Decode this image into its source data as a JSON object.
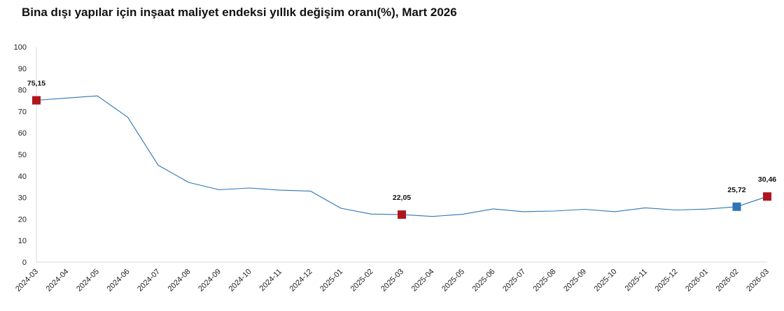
{
  "title": "Bina dışı yapılar için inşaat maliyet endeksi yıllık değişim oranı(%), Mart 2026",
  "chart_data": {
    "type": "line",
    "categories": [
      "2024-03",
      "2024-04",
      "2024-05",
      "2024-06",
      "2024-07",
      "2024-08",
      "2024-09",
      "2024-10",
      "2024-11",
      "2024-12",
      "2025-01",
      "2025-02",
      "2025-03",
      "2025-04",
      "2025-05",
      "2025-06",
      "2025-07",
      "2025-08",
      "2025-09",
      "2025-10",
      "2025-11",
      "2025-12",
      "2026-01",
      "2026-02",
      "2026-03"
    ],
    "series": [
      {
        "values": [
          75.15,
          76.2,
          77.2,
          67.3,
          45.0,
          37.0,
          33.6,
          34.4,
          33.4,
          33.0,
          25.0,
          22.3,
          22.05,
          21.2,
          22.2,
          24.7,
          23.4,
          23.7,
          24.5,
          23.4,
          25.2,
          24.2,
          24.6,
          25.72,
          30.46
        ],
        "color": "#2e75b6"
      }
    ],
    "highlights": [
      {
        "category": "2024-03",
        "value": 75.15,
        "label": "75,15",
        "color": "#b0161f"
      },
      {
        "category": "2025-03",
        "value": 22.05,
        "label": "22,05",
        "color": "#b0161f"
      },
      {
        "category": "2026-02",
        "value": 25.72,
        "label": "25,72",
        "color": "#2e75b6"
      },
      {
        "category": "2026-03",
        "value": 30.46,
        "label": "30,46",
        "color": "#b0161f"
      }
    ],
    "y_ticks": [
      "0",
      "10",
      "20",
      "30",
      "40",
      "50",
      "60",
      "70",
      "80",
      "90",
      "100"
    ],
    "ylim": [
      0,
      100
    ],
    "grid": false,
    "xlabel": "",
    "ylabel": ""
  }
}
